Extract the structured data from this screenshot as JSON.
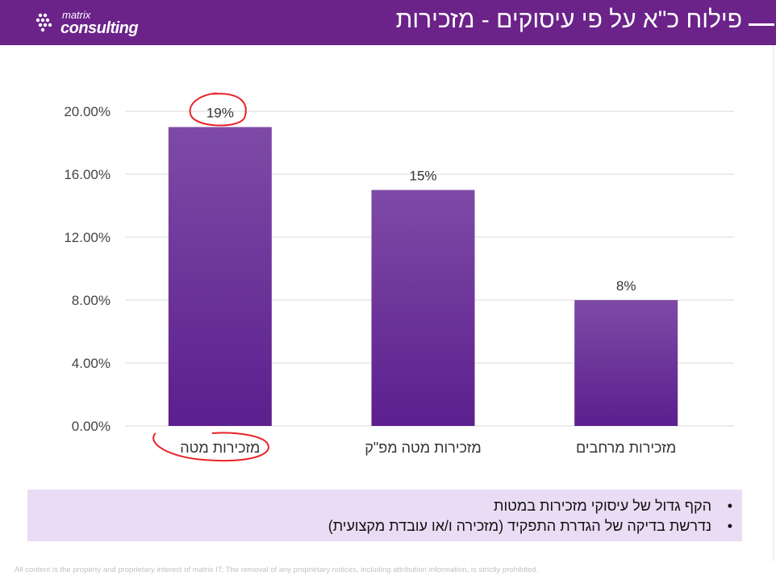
{
  "header": {
    "logo": {
      "line1": "matrix",
      "line2": "consulting"
    },
    "title": "פילוח כ\"א על פי עיסוקים - מזכירות"
  },
  "chart_data": {
    "type": "bar",
    "categories": [
      "מזכירות מטה",
      "מזכירות מטה מפ\"ק",
      "מזכירות מרחבים"
    ],
    "values": [
      19,
      15,
      8
    ],
    "data_labels": [
      "19%",
      "15%",
      "8%"
    ],
    "yticks": [
      "0.00%",
      "4.00%",
      "8.00%",
      "12.00%",
      "16.00%",
      "20.00%"
    ],
    "ylim": [
      0,
      20
    ],
    "title": "",
    "xlabel": "",
    "ylabel": "",
    "grid": true,
    "annotations": [
      {
        "type": "hand-drawn-circle",
        "target": "data label 19%"
      },
      {
        "type": "hand-drawn-circle",
        "target": "category label מזכירות מטה"
      }
    ]
  },
  "notes": {
    "items": [
      "הקף גדול של עיסוקי מזכירות במטות",
      "נדרשת בדיקה של הגדרת התפקיד (מזכירה ו/או עובדת מקצועית)"
    ],
    "bullet": "•"
  },
  "footer": {
    "text": "All content is the property and proprietary interest of matrix IT; The removal of any proprietary notices, including attribution information, is strictly prohibited."
  },
  "colors": {
    "header": "#6b2389",
    "bar_top": "#7e4aa6",
    "bar_bottom": "#5c1f8e",
    "grid": "#d9d9d9",
    "notes_bg": "#e9dcf4",
    "annotation": "#e8232a"
  }
}
